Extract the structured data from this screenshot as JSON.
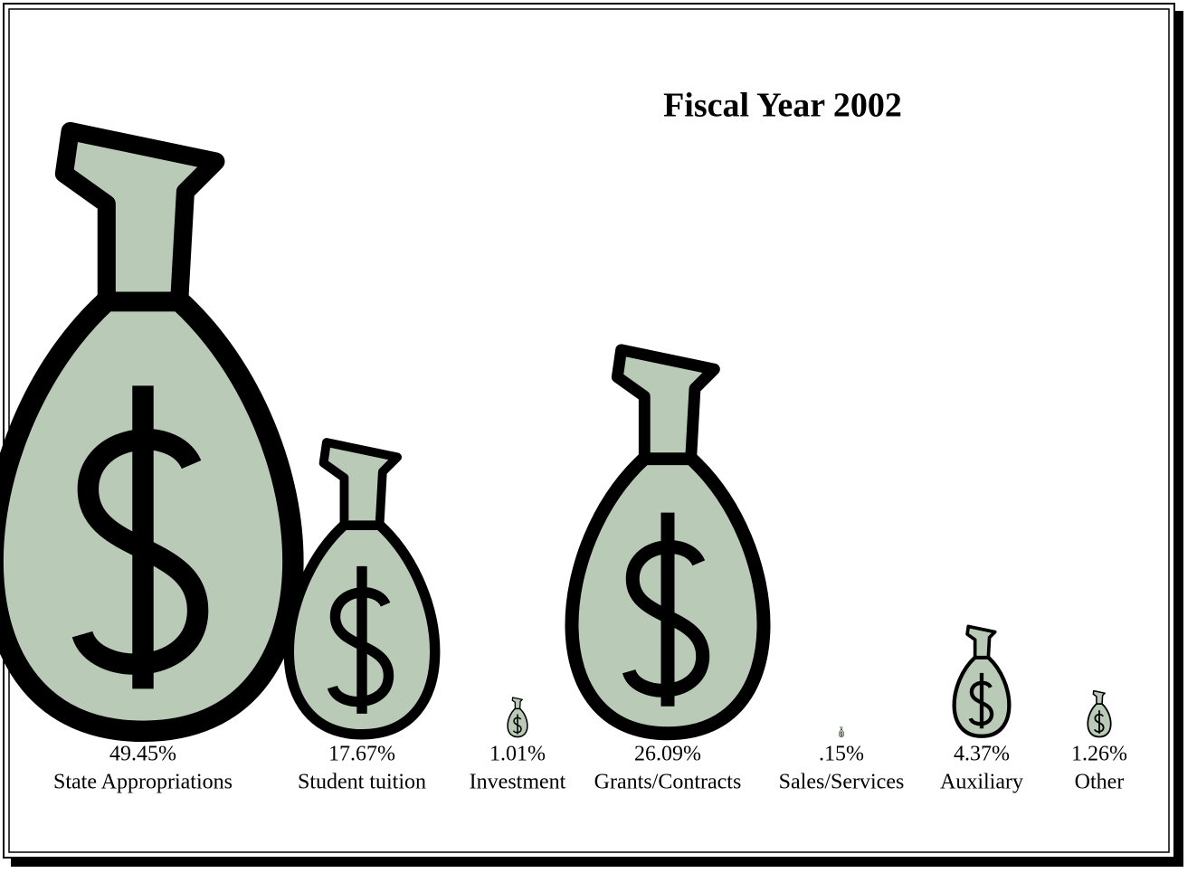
{
  "chart_data": {
    "type": "pictogram",
    "title": "Fiscal Year 2002",
    "categories": [
      "State Appropriations",
      "Student tuition",
      "Investment",
      "Grants/Contracts",
      "Sales/Services",
      "Auxiliary",
      "Other"
    ],
    "values": [
      49.45,
      17.67,
      1.01,
      26.09,
      0.15,
      4.37,
      1.26
    ],
    "value_labels": [
      "49.45%",
      "17.67%",
      "1.01%",
      "26.09%",
      ".15%",
      "4.37%",
      "1.26%"
    ],
    "color": "#b9cbb6"
  }
}
